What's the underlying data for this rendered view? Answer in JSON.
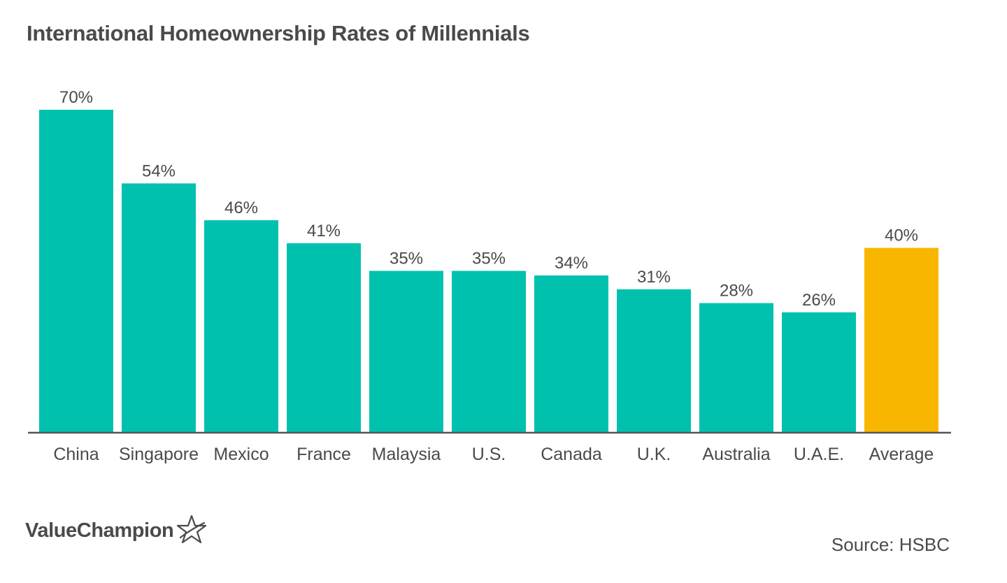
{
  "title": "International Homeownership Rates of Millennials",
  "brand": "ValueChampion",
  "source": "Source: HSBC",
  "colors": {
    "bar": "#00c1ae",
    "highlight": "#f8b600",
    "text": "#4a4a4a",
    "axis": "#555555"
  },
  "chart_data": {
    "type": "bar",
    "title": "International Homeownership Rates of Millennials",
    "xlabel": "",
    "ylabel": "",
    "categories": [
      "China",
      "Singapore",
      "Mexico",
      "France",
      "Malaysia",
      "U.S.",
      "Canada",
      "U.K.",
      "Australia",
      "U.A.E.",
      "Average"
    ],
    "values": [
      70,
      54,
      46,
      41,
      35,
      35,
      34,
      31,
      28,
      26,
      40
    ],
    "data_labels": [
      "70%",
      "54%",
      "46%",
      "41%",
      "35%",
      "35%",
      "34%",
      "31%",
      "28%",
      "26%",
      "40%"
    ],
    "highlight": "Average",
    "unit": "%",
    "ylim": [
      0,
      70
    ],
    "grid": false,
    "legend": "none"
  }
}
